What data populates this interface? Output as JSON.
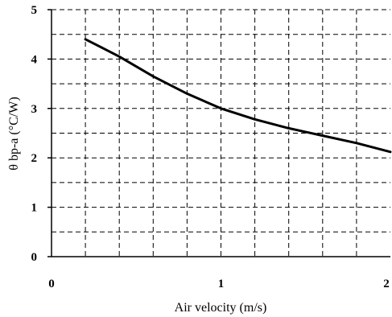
{
  "chart_data": {
    "type": "line",
    "xlabel": "Air velocity (m/s)",
    "ylabel": "θ bp-a (°C/W)",
    "xlim": [
      0,
      2
    ],
    "ylim": [
      0,
      5
    ],
    "x_ticks": [
      "0",
      "1",
      "2"
    ],
    "y_ticks": [
      "0",
      "1",
      "2",
      "3",
      "4",
      "5"
    ],
    "grid": true,
    "grid_style": "dashed",
    "legend": "none",
    "line_color": "#000000",
    "series": [
      {
        "x": [
          0.2,
          0.4,
          0.6,
          0.8,
          1.0,
          1.2,
          1.4,
          1.6,
          1.8,
          2.0
        ],
        "y": [
          4.4,
          4.05,
          3.65,
          3.3,
          3.0,
          2.78,
          2.6,
          2.45,
          2.3,
          2.12
        ]
      }
    ]
  }
}
